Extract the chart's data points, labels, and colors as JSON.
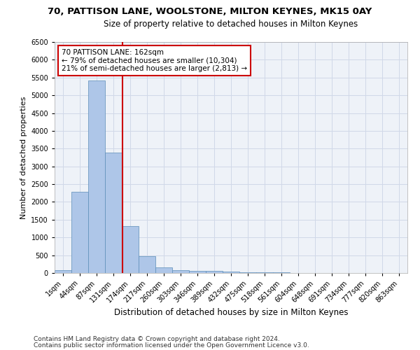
{
  "title1": "70, PATTISON LANE, WOOLSTONE, MILTON KEYNES, MK15 0AY",
  "title2": "Size of property relative to detached houses in Milton Keynes",
  "xlabel": "Distribution of detached houses by size in Milton Keynes",
  "ylabel": "Number of detached properties",
  "footnote1": "Contains HM Land Registry data © Crown copyright and database right 2024.",
  "footnote2": "Contains public sector information licensed under the Open Government Licence v3.0.",
  "bar_labels": [
    "1sqm",
    "44sqm",
    "87sqm",
    "131sqm",
    "174sqm",
    "217sqm",
    "260sqm",
    "303sqm",
    "346sqm",
    "389sqm",
    "432sqm",
    "475sqm",
    "518sqm",
    "561sqm",
    "604sqm",
    "648sqm",
    "691sqm",
    "734sqm",
    "777sqm",
    "820sqm",
    "863sqm"
  ],
  "bar_values": [
    75,
    2280,
    5420,
    3390,
    1310,
    475,
    165,
    85,
    65,
    50,
    35,
    20,
    15,
    10,
    8,
    5,
    4,
    3,
    2,
    2,
    1
  ],
  "bar_color": "#aec6e8",
  "bar_edgecolor": "#5b8db8",
  "grid_color": "#d0d8e8",
  "bg_color": "#eef2f8",
  "annotation_line1": "70 PATTISON LANE: 162sqm",
  "annotation_line2": "← 79% of detached houses are smaller (10,304)",
  "annotation_line3": "21% of semi-detached houses are larger (2,813) →",
  "vline_x": 3.55,
  "vline_color": "#cc0000",
  "annotation_box_color": "#cc0000",
  "ylim": [
    0,
    6500
  ],
  "yticks": [
    0,
    500,
    1000,
    1500,
    2000,
    2500,
    3000,
    3500,
    4000,
    4500,
    5000,
    5500,
    6000,
    6500
  ],
  "title1_fontsize": 9.5,
  "title2_fontsize": 8.5,
  "xlabel_fontsize": 8.5,
  "ylabel_fontsize": 8,
  "footnote_fontsize": 6.5,
  "tick_fontsize": 7,
  "annot_fontsize": 7.5
}
